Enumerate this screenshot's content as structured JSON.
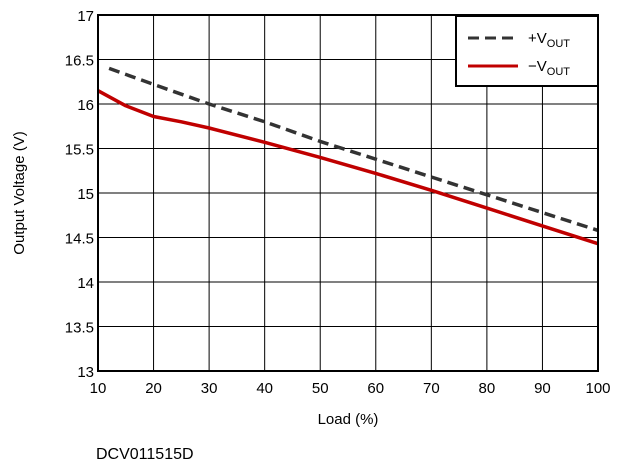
{
  "chart_data": {
    "type": "line",
    "xlabel": "Load (%)",
    "ylabel": "Output Voltage (V)",
    "xlim": [
      10,
      100
    ],
    "ylim": [
      13,
      17
    ],
    "x_ticks": [
      10,
      20,
      30,
      40,
      50,
      60,
      70,
      80,
      90,
      100
    ],
    "y_ticks": [
      13,
      13.5,
      14,
      14.5,
      15,
      15.5,
      16,
      16.5,
      17
    ],
    "x_tick_labels": [
      "10",
      "20",
      "30",
      "40",
      "50",
      "60",
      "70",
      "80",
      "90",
      "100"
    ],
    "y_tick_labels": [
      "13",
      "13.5",
      "14",
      "14.5",
      "15",
      "15.5",
      "16",
      "16.5",
      "17"
    ],
    "grid": true,
    "legend_position": "top-right",
    "series": [
      {
        "name": "+VOUT",
        "legend_main": "+V",
        "legend_sub": "OUT",
        "color": "#333333",
        "style": "dashed",
        "x": [
          12,
          20,
          30,
          40,
          50,
          60,
          70,
          80,
          90,
          100
        ],
        "y": [
          16.4,
          16.22,
          16.0,
          15.8,
          15.58,
          15.38,
          15.18,
          14.98,
          14.78,
          14.58
        ]
      },
      {
        "name": "−VOUT",
        "legend_main": "−V",
        "legend_sub": "OUT",
        "color": "#c00000",
        "style": "solid",
        "x": [
          10,
          15,
          20,
          25,
          30,
          40,
          50,
          60,
          70,
          80,
          90,
          100
        ],
        "y": [
          16.15,
          15.98,
          15.86,
          15.8,
          15.73,
          15.57,
          15.4,
          15.22,
          15.03,
          14.83,
          14.63,
          14.43
        ]
      }
    ]
  },
  "doc_id": "DCV011515D"
}
